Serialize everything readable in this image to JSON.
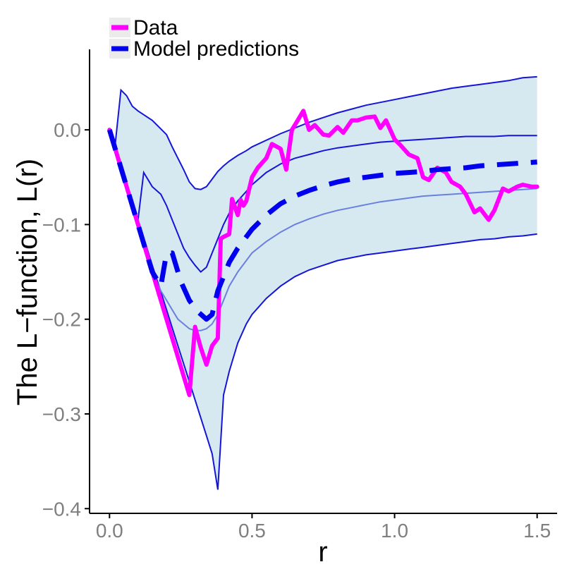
{
  "chart_data": {
    "type": "line",
    "title": "",
    "xlabel": "r",
    "ylabel": "The L−function, L(r)",
    "xlim": [
      -0.07,
      1.57
    ],
    "ylim": [
      -0.405,
      0.085
    ],
    "x_ticks": [
      0.0,
      0.5,
      1.0,
      1.5
    ],
    "x_tick_labels": [
      "0.0",
      "0.5",
      "1.0",
      "1.5"
    ],
    "y_ticks": [
      -0.4,
      -0.3,
      -0.2,
      -0.1,
      0.0
    ],
    "y_tick_labels": [
      "−0.4",
      "−0.3",
      "−0.2",
      "−0.1",
      "0.0"
    ],
    "grid": false,
    "legend": {
      "placement": "top-left"
    },
    "colors": {
      "data": "#ff00ff",
      "model": "#0000ee",
      "envelope_fill": "#d6e9f1",
      "envelope_line": "#1515d8",
      "theoretical": "#6b7fe0",
      "axis": "#000000"
    },
    "series": [
      {
        "name": "Data",
        "style": "solid",
        "x": [
          0.0,
          0.1,
          0.2,
          0.28,
          0.3,
          0.32,
          0.34,
          0.36,
          0.38,
          0.39,
          0.4,
          0.42,
          0.43,
          0.45,
          0.46,
          0.47,
          0.48,
          0.5,
          0.52,
          0.55,
          0.57,
          0.6,
          0.62,
          0.64,
          0.65,
          0.68,
          0.7,
          0.72,
          0.75,
          0.77,
          0.8,
          0.82,
          0.85,
          0.87,
          0.9,
          0.93,
          0.95,
          0.97,
          1.0,
          1.02,
          1.05,
          1.08,
          1.1,
          1.12,
          1.15,
          1.18,
          1.2,
          1.23,
          1.25,
          1.28,
          1.3,
          1.33,
          1.35,
          1.38,
          1.4,
          1.43,
          1.45,
          1.48,
          1.5
        ],
        "y": [
          0.0,
          -0.1,
          -0.2,
          -0.28,
          -0.208,
          -0.23,
          -0.248,
          -0.228,
          -0.22,
          -0.115,
          -0.113,
          -0.11,
          -0.073,
          -0.09,
          -0.074,
          -0.08,
          -0.075,
          -0.05,
          -0.04,
          -0.03,
          -0.015,
          -0.02,
          -0.042,
          0.0,
          0.005,
          0.02,
          0.0,
          0.005,
          -0.005,
          -0.006,
          0.003,
          -0.003,
          0.01,
          0.01,
          0.013,
          0.014,
          0.002,
          0.01,
          -0.01,
          -0.016,
          -0.026,
          -0.03,
          -0.05,
          -0.053,
          -0.04,
          -0.045,
          -0.055,
          -0.06,
          -0.068,
          -0.087,
          -0.083,
          -0.095,
          -0.085,
          -0.062,
          -0.065,
          -0.06,
          -0.058,
          -0.06,
          -0.06
        ]
      },
      {
        "name": "Model predictions",
        "style": "dashed",
        "x": [
          0.0,
          0.05,
          0.1,
          0.15,
          0.18,
          0.2,
          0.22,
          0.25,
          0.28,
          0.31,
          0.34,
          0.36,
          0.38,
          0.4,
          0.42,
          0.45,
          0.5,
          0.55,
          0.6,
          0.65,
          0.7,
          0.75,
          0.8,
          0.85,
          0.9,
          0.95,
          1.0,
          1.05,
          1.1,
          1.15,
          1.2,
          1.25,
          1.3,
          1.35,
          1.4,
          1.45,
          1.5
        ],
        "y": [
          0.0,
          -0.05,
          -0.1,
          -0.15,
          -0.165,
          -0.13,
          -0.13,
          -0.16,
          -0.18,
          -0.192,
          -0.2,
          -0.195,
          -0.17,
          -0.155,
          -0.14,
          -0.125,
          -0.105,
          -0.09,
          -0.078,
          -0.07,
          -0.064,
          -0.059,
          -0.055,
          -0.052,
          -0.05,
          -0.048,
          -0.046,
          -0.045,
          -0.044,
          -0.042,
          -0.041,
          -0.04,
          -0.038,
          -0.037,
          -0.036,
          -0.035,
          -0.034
        ]
      }
    ],
    "envelope": {
      "x": [
        0.0,
        0.02,
        0.04,
        0.06,
        0.08,
        0.1,
        0.12,
        0.15,
        0.18,
        0.2,
        0.22,
        0.24,
        0.26,
        0.28,
        0.3,
        0.32,
        0.34,
        0.36,
        0.38,
        0.4,
        0.42,
        0.45,
        0.48,
        0.5,
        0.55,
        0.6,
        0.65,
        0.7,
        0.75,
        0.8,
        0.85,
        0.9,
        0.95,
        1.0,
        1.05,
        1.1,
        1.15,
        1.2,
        1.25,
        1.3,
        1.35,
        1.4,
        1.45,
        1.5
      ],
      "upper": [
        0.0,
        -0.015,
        0.042,
        0.036,
        0.025,
        0.02,
        0.016,
        0.01,
        0.001,
        -0.005,
        -0.018,
        -0.03,
        -0.042,
        -0.055,
        -0.062,
        -0.063,
        -0.06,
        -0.052,
        -0.044,
        -0.038,
        -0.033,
        -0.027,
        -0.022,
        -0.018,
        -0.011,
        -0.004,
        0.002,
        0.008,
        0.013,
        0.018,
        0.022,
        0.026,
        0.029,
        0.032,
        0.035,
        0.038,
        0.041,
        0.044,
        0.046,
        0.048,
        0.05,
        0.052,
        0.055,
        0.056
      ],
      "lower": [
        0.0,
        -0.019,
        -0.038,
        -0.057,
        -0.076,
        -0.095,
        -0.114,
        -0.143,
        -0.171,
        -0.19,
        -0.209,
        -0.228,
        -0.247,
        -0.266,
        -0.285,
        -0.304,
        -0.323,
        -0.342,
        -0.38,
        -0.28,
        -0.255,
        -0.225,
        -0.205,
        -0.195,
        -0.178,
        -0.165,
        -0.155,
        -0.148,
        -0.143,
        -0.138,
        -0.135,
        -0.132,
        -0.13,
        -0.128,
        -0.126,
        -0.124,
        -0.122,
        -0.12,
        -0.118,
        -0.116,
        -0.115,
        -0.113,
        -0.112,
        -0.11
      ],
      "mean_upper": [
        0.0,
        -0.02,
        -0.04,
        -0.06,
        -0.08,
        -0.095,
        -0.045,
        -0.06,
        -0.068,
        -0.08,
        -0.095,
        -0.11,
        -0.125,
        -0.135,
        -0.143,
        -0.15,
        -0.145,
        -0.13,
        -0.115,
        -0.1,
        -0.088,
        -0.075,
        -0.065,
        -0.058,
        -0.045,
        -0.036,
        -0.03,
        -0.026,
        -0.022,
        -0.019,
        -0.017,
        -0.015,
        -0.013,
        -0.012,
        -0.011,
        -0.01,
        -0.009,
        -0.008,
        -0.007,
        -0.007,
        -0.007,
        -0.006,
        -0.006,
        -0.006
      ],
      "theoretical": [
        0.0,
        -0.02,
        -0.04,
        -0.06,
        -0.08,
        -0.1,
        -0.12,
        -0.15,
        -0.17,
        -0.18,
        -0.19,
        -0.2,
        -0.205,
        -0.21,
        -0.212,
        -0.212,
        -0.21,
        -0.205,
        -0.195,
        -0.18,
        -0.165,
        -0.15,
        -0.138,
        -0.13,
        -0.118,
        -0.108,
        -0.1,
        -0.094,
        -0.089,
        -0.085,
        -0.082,
        -0.079,
        -0.076,
        -0.074,
        -0.072,
        -0.07,
        -0.069,
        -0.068,
        -0.067,
        -0.066,
        -0.065,
        -0.064,
        -0.063,
        -0.062
      ]
    }
  }
}
